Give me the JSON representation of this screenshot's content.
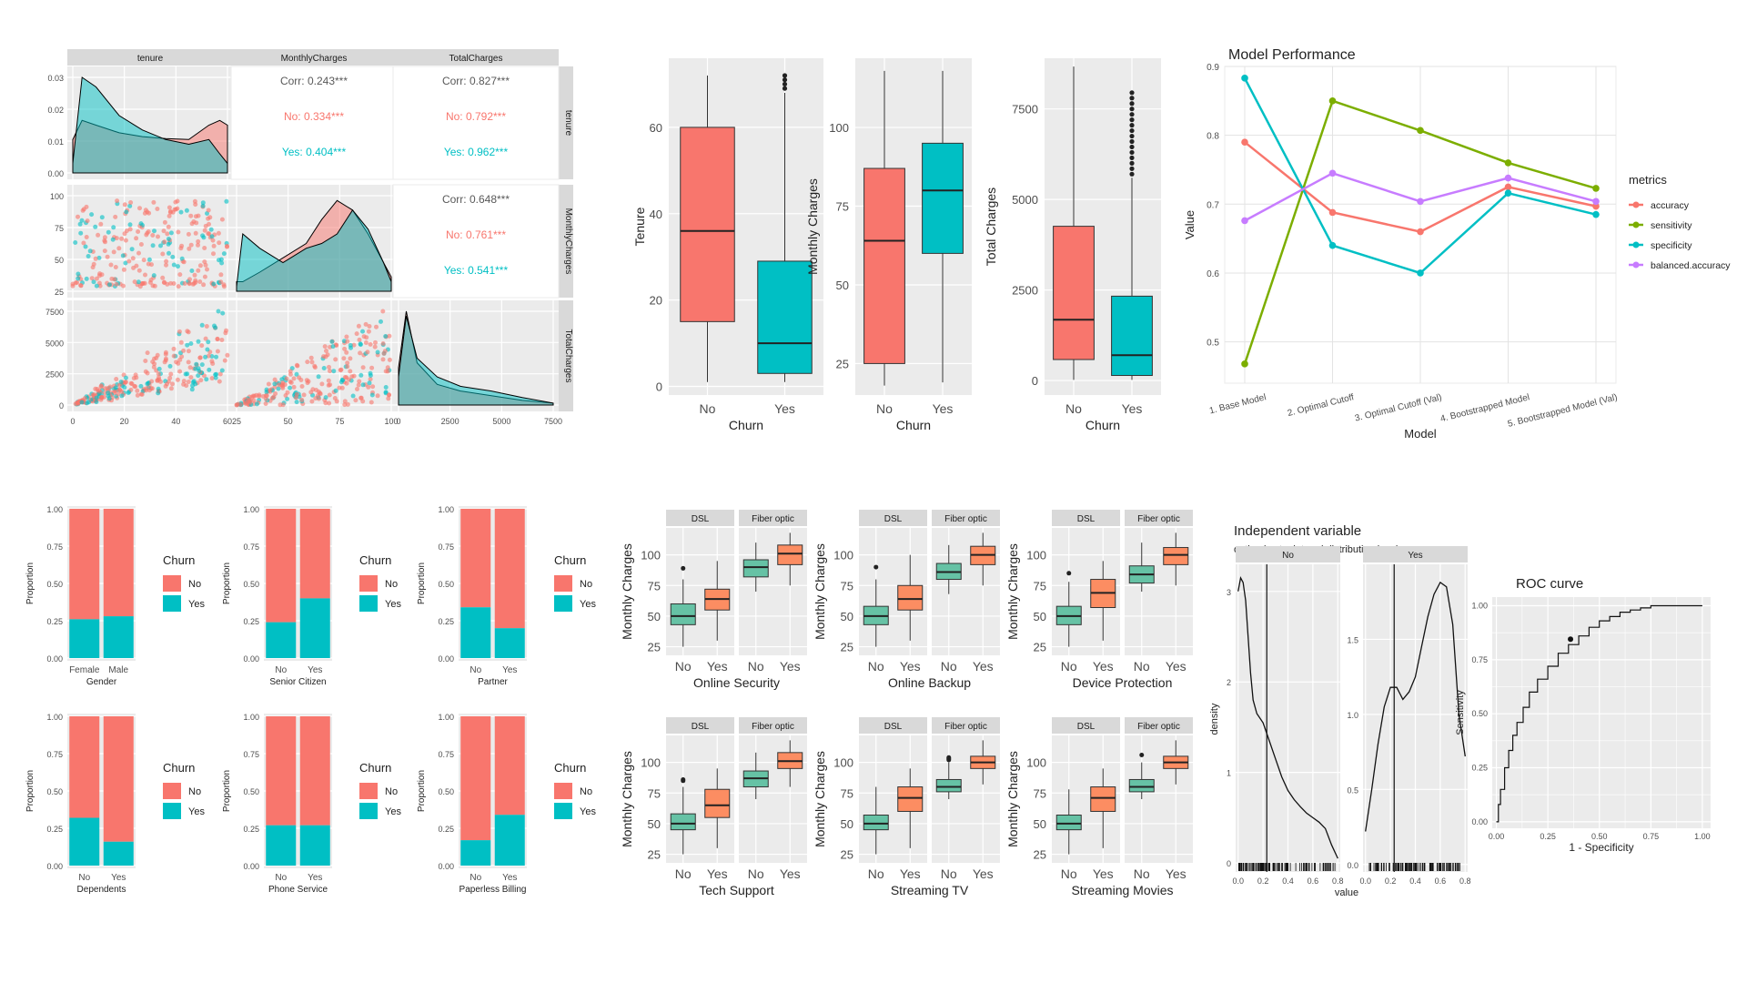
{
  "colors": {
    "no": "#F8766D",
    "yes": "#00BFC4",
    "dsl_no": "#66C2A5",
    "dsl_yes": "#FC8D62",
    "panel": "#EBEBEB",
    "strip": "#D9D9D9",
    "grid": "#FFFFFF",
    "accuracy": "#F8766D",
    "sensitivity": "#7CAE00",
    "specificity": "#00BFC4",
    "balanced": "#C77CFF"
  },
  "chart_data": [
    {
      "type": "scatter",
      "name": "pairs",
      "vars": [
        "tenure",
        "MonthlyCharges",
        "TotalCharges"
      ],
      "corr": [
        {
          "row": 0,
          "col": 1,
          "labels": [
            "Corr: 0.243***",
            "No: 0.334***",
            "Yes: 0.404***"
          ]
        },
        {
          "row": 0,
          "col": 2,
          "labels": [
            "Corr: 0.827***",
            "No: 0.792***",
            "Yes: 0.962***"
          ]
        },
        {
          "row": 1,
          "col": 2,
          "labels": [
            "Corr: 0.648***",
            "No: 0.761***",
            "Yes: 0.541***"
          ]
        }
      ],
      "density_y_ticks": [
        "0.00",
        "0.01",
        "0.02",
        "0.03"
      ],
      "monthly_y_ticks": [
        "25",
        "50",
        "75",
        "100"
      ],
      "total_y_ticks": [
        "0",
        "2500",
        "5000",
        "7500"
      ],
      "x_ticks": [
        [
          "0",
          "20",
          "40",
          "60"
        ],
        [
          "25",
          "50",
          "75",
          "100"
        ],
        [
          "0",
          "2500",
          "5000",
          "7500"
        ]
      ]
    },
    {
      "type": "box",
      "name": "tenure-box",
      "ylabel": "Tenure",
      "xlabel": "Churn",
      "categories": [
        "No",
        "Yes"
      ],
      "ylim": [
        -2,
        76
      ],
      "yticks": [
        0,
        20,
        40,
        60
      ],
      "boxes": [
        {
          "min": 1,
          "q1": 15,
          "median": 36,
          "q3": 60,
          "max": 72,
          "outliers": []
        },
        {
          "min": 1,
          "q1": 3,
          "median": 10,
          "q3": 29,
          "max": 68,
          "outliers": [
            69,
            70,
            71,
            72
          ]
        }
      ]
    },
    {
      "type": "box",
      "name": "monthly-box",
      "ylabel": "Monthly Charges",
      "xlabel": "Churn",
      "categories": [
        "No",
        "Yes"
      ],
      "ylim": [
        15,
        122
      ],
      "yticks": [
        25,
        50,
        75,
        100
      ],
      "boxes": [
        {
          "min": 18,
          "q1": 25,
          "median": 64,
          "q3": 87,
          "max": 118,
          "outliers": []
        },
        {
          "min": 19,
          "q1": 60,
          "median": 80,
          "q3": 95,
          "max": 118,
          "outliers": []
        }
      ]
    },
    {
      "type": "box",
      "name": "total-box",
      "ylabel": "Total Charges",
      "xlabel": "Churn",
      "categories": [
        "No",
        "Yes"
      ],
      "ylim": [
        -400,
        8900
      ],
      "yticks": [
        0,
        2500,
        5000,
        7500
      ],
      "boxes": [
        {
          "min": 18,
          "q1": 580,
          "median": 1680,
          "q3": 4260,
          "max": 8670,
          "outliers": []
        },
        {
          "min": 19,
          "q1": 140,
          "median": 700,
          "q3": 2330,
          "max": 5600,
          "outliers": [
            5700,
            5850,
            6000,
            6150,
            6300,
            6450,
            6600,
            6750,
            6900,
            7050,
            7200,
            7350,
            7500,
            7650,
            7800,
            7950
          ]
        }
      ]
    },
    {
      "type": "line",
      "name": "model-performance",
      "title": "Model Performance",
      "xlabel": "Model",
      "ylabel": "Value",
      "ylim": [
        0.44,
        0.9
      ],
      "yticks": [
        0.5,
        0.6,
        0.7,
        0.8,
        0.9
      ],
      "categories": [
        "1. Base Model",
        "2. Optimal Cutoff",
        "3. Optimal Cutoff (Val)",
        "4. Bootstrapped Model",
        "5. Bootstrapped Model (Val)"
      ],
      "legend_title": "metrics",
      "series": [
        {
          "name": "accuracy",
          "color": "#F8766D",
          "values": [
            0.79,
            0.688,
            0.66,
            0.725,
            0.697
          ]
        },
        {
          "name": "sensitivity",
          "color": "#7CAE00",
          "values": [
            0.468,
            0.85,
            0.807,
            0.76,
            0.723
          ]
        },
        {
          "name": "specificity",
          "color": "#00BFC4",
          "values": [
            0.883,
            0.64,
            0.6,
            0.716,
            0.685
          ]
        },
        {
          "name": "balanced.accuracy",
          "color": "#C77CFF",
          "values": [
            0.676,
            0.745,
            0.704,
            0.738,
            0.704
          ]
        }
      ]
    },
    {
      "type": "bar",
      "name": "proportion-bars",
      "ylabel": "Proportion",
      "legend_title": "Churn",
      "legend": [
        "No",
        "Yes"
      ],
      "yticks": [
        "0.00",
        "0.25",
        "0.50",
        "0.75",
        "1.00"
      ],
      "panels": [
        {
          "xlabel": "Gender",
          "categories": [
            "Female",
            "Male"
          ],
          "yes": [
            0.26,
            0.28
          ]
        },
        {
          "xlabel": "Senior Citizen",
          "categories": [
            "No",
            "Yes"
          ],
          "yes": [
            0.24,
            0.4
          ]
        },
        {
          "xlabel": "Partner",
          "categories": [
            "No",
            "Yes"
          ],
          "yes": [
            0.34,
            0.2
          ]
        },
        {
          "xlabel": "Dependents",
          "categories": [
            "No",
            "Yes"
          ],
          "yes": [
            0.32,
            0.16
          ]
        },
        {
          "xlabel": "Phone Service",
          "categories": [
            "No",
            "Yes"
          ],
          "yes": [
            0.27,
            0.27
          ]
        },
        {
          "xlabel": "Paperless Billing",
          "categories": [
            "No",
            "Yes"
          ],
          "yes": [
            0.17,
            0.34
          ]
        }
      ]
    },
    {
      "type": "box",
      "name": "service-boxes",
      "ylabel": "Monthly Charges",
      "facets": [
        "DSL",
        "Fiber optic"
      ],
      "categories": [
        "No",
        "Yes"
      ],
      "ylim": [
        18,
        122
      ],
      "yticks": [
        25,
        50,
        75,
        100
      ],
      "panels": [
        {
          "xlabel": "Online Security",
          "boxes": [
            [
              25,
              43,
              50,
              60,
              80,
              [
                89
              ]
            ],
            [
              30,
              55,
              64,
              72,
              95,
              []
            ],
            [
              70,
              82,
              90,
              96,
              110,
              []
            ],
            [
              75,
              92,
              101,
              108,
              118,
              []
            ]
          ]
        },
        {
          "xlabel": "Online Backup",
          "boxes": [
            [
              25,
              43,
              50,
              58,
              80,
              [
                90
              ]
            ],
            [
              30,
              55,
              64,
              75,
              100,
              []
            ],
            [
              68,
              80,
              86,
              93,
              108,
              []
            ],
            [
              75,
              92,
              100,
              107,
              118,
              []
            ]
          ]
        },
        {
          "xlabel": "Device Protection",
          "boxes": [
            [
              25,
              43,
              50,
              58,
              78,
              [
                85
              ]
            ],
            [
              30,
              57,
              69,
              80,
              95,
              []
            ],
            [
              70,
              77,
              84,
              91,
              110,
              []
            ],
            [
              75,
              92,
              100,
              106,
              118,
              []
            ]
          ]
        },
        {
          "xlabel": "Tech Support",
          "boxes": [
            [
              25,
              45,
              50,
              58,
              80,
              [
                85,
                86
              ]
            ],
            [
              30,
              55,
              65,
              78,
              95,
              []
            ],
            [
              70,
              80,
              87,
              93,
              108,
              []
            ],
            [
              80,
              95,
              101,
              108,
              118,
              []
            ]
          ]
        },
        {
          "xlabel": "Streaming TV",
          "boxes": [
            [
              25,
              45,
              50,
              57,
              80,
              []
            ],
            [
              30,
              60,
              71,
              80,
              95,
              []
            ],
            [
              70,
              76,
              80,
              86,
              100,
              [
                102,
                103,
                104
              ]
            ],
            [
              82,
              95,
              100,
              105,
              118,
              []
            ]
          ]
        },
        {
          "xlabel": "Streaming Movies",
          "boxes": [
            [
              25,
              45,
              50,
              57,
              78,
              []
            ],
            [
              30,
              60,
              71,
              80,
              95,
              []
            ],
            [
              70,
              76,
              80,
              86,
              100,
              [
                106
              ]
            ],
            [
              82,
              95,
              100,
              105,
              118,
              []
            ]
          ]
        }
      ]
    },
    {
      "type": "line",
      "name": "density-cutpoint",
      "title": "Independent variable",
      "subtitle": "optimal cutpoint and distribution by class",
      "xlabel": "value",
      "ylabel": "density",
      "facets": [
        "No",
        "Yes"
      ],
      "cutpoint": 0.23,
      "panels": [
        {
          "xlim": [
            -0.02,
            0.82
          ],
          "ylim": [
            -0.1,
            3.3
          ],
          "yticks": [
            "0",
            "1",
            "2",
            "3"
          ],
          "ytick_vals": [
            0,
            1,
            2,
            3
          ],
          "x": [
            0.0,
            0.02,
            0.04,
            0.06,
            0.08,
            0.1,
            0.12,
            0.15,
            0.2,
            0.25,
            0.3,
            0.35,
            0.4,
            0.45,
            0.5,
            0.55,
            0.6,
            0.65,
            0.7,
            0.75,
            0.8
          ],
          "y": [
            3.0,
            3.15,
            3.1,
            2.9,
            2.5,
            2.1,
            1.8,
            1.65,
            1.55,
            1.35,
            1.15,
            0.95,
            0.8,
            0.7,
            0.62,
            0.55,
            0.5,
            0.45,
            0.38,
            0.2,
            0.05
          ]
        },
        {
          "xlim": [
            -0.02,
            0.82
          ],
          "ylim": [
            -0.05,
            2.0
          ],
          "yticks": [
            "0.0",
            "0.5",
            "1.0",
            "1.5"
          ],
          "ytick_vals": [
            0,
            0.5,
            1.0,
            1.5
          ],
          "x": [
            0.0,
            0.05,
            0.1,
            0.15,
            0.2,
            0.25,
            0.3,
            0.35,
            0.4,
            0.45,
            0.5,
            0.55,
            0.6,
            0.65,
            0.7,
            0.75,
            0.8
          ],
          "y": [
            0.22,
            0.5,
            0.8,
            1.05,
            1.18,
            1.18,
            1.1,
            1.15,
            1.25,
            1.45,
            1.65,
            1.8,
            1.88,
            1.85,
            1.6,
            1.0,
            0.72
          ]
        }
      ],
      "x_ticks": [
        "0.0",
        "0.2",
        "0.4",
        "0.6",
        "0.8"
      ]
    },
    {
      "type": "line",
      "name": "roc-curve",
      "title": "ROC curve",
      "xlabel": "1 - Specificity",
      "ylabel": "Sensitivity",
      "ticks": [
        "0.00",
        "0.25",
        "0.50",
        "0.75",
        "1.00"
      ],
      "x": [
        0,
        0.01,
        0.02,
        0.04,
        0.06,
        0.08,
        0.1,
        0.13,
        0.16,
        0.2,
        0.25,
        0.3,
        0.35,
        0.4,
        0.45,
        0.5,
        0.55,
        0.6,
        0.65,
        0.7,
        0.75,
        0.8,
        0.85,
        1.0
      ],
      "y": [
        0,
        0.08,
        0.15,
        0.25,
        0.33,
        0.4,
        0.46,
        0.53,
        0.6,
        0.66,
        0.72,
        0.78,
        0.82,
        0.86,
        0.9,
        0.93,
        0.95,
        0.97,
        0.98,
        0.99,
        1.0,
        1.0,
        1.0,
        1.0
      ],
      "cut": [
        0.36,
        0.845
      ]
    }
  ]
}
